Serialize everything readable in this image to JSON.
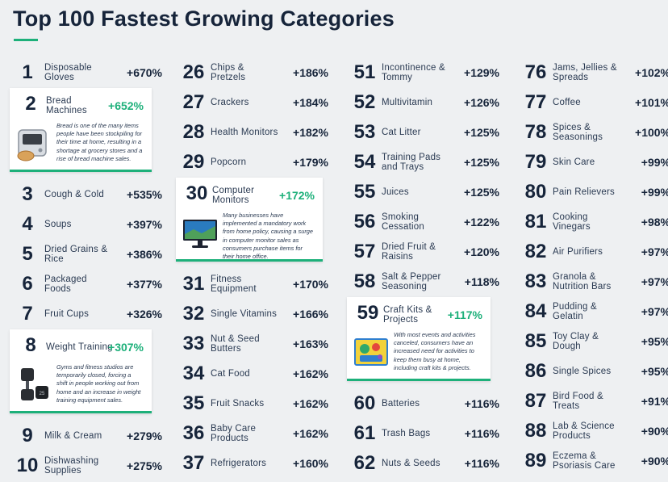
{
  "header": {
    "title": "Top 100 Fastest Growing Categories"
  },
  "chart_data": {
    "type": "table",
    "title": "Top 100 Fastest Growing Categories",
    "columns": [
      [
        {
          "rank": 1,
          "name": "Disposable Gloves",
          "value": "+670%"
        },
        {
          "rank": 2,
          "name": "Bread Machines",
          "value": "+652%",
          "highlight": true,
          "icon": "bread-machine-icon",
          "note": "Bread is one of the many items people have been stockpiling for their time at home, resulting in a shortage at grocery stores and a rise of bread machine sales."
        },
        {
          "rank": 3,
          "name": "Cough & Cold",
          "value": "+535%"
        },
        {
          "rank": 4,
          "name": "Soups",
          "value": "+397%"
        },
        {
          "rank": 5,
          "name": "Dried Grains & Rice",
          "value": "+386%"
        },
        {
          "rank": 6,
          "name": "Packaged Foods",
          "value": "+377%"
        },
        {
          "rank": 7,
          "name": "Fruit Cups",
          "value": "+326%"
        },
        {
          "rank": 8,
          "name": "Weight Training",
          "value": "+307%",
          "highlight": true,
          "icon": "dumbbell-icon",
          "note": "Gyms and fitness studios are temporarily closed, forcing a shift in people working out from home and an increase in weight training equipment sales."
        },
        {
          "rank": 9,
          "name": "Milk & Cream",
          "value": "+279%"
        },
        {
          "rank": 10,
          "name": "Dishwashing Supplies",
          "value": "+275%"
        }
      ],
      [
        {
          "rank": 26,
          "name": "Chips & Pretzels",
          "value": "+186%"
        },
        {
          "rank": 27,
          "name": "Crackers",
          "value": "+184%"
        },
        {
          "rank": 28,
          "name": "Health Monitors",
          "value": "+182%"
        },
        {
          "rank": 29,
          "name": "Popcorn",
          "value": "+179%"
        },
        {
          "rank": 30,
          "name": "Computer Monitors",
          "value": "+172%",
          "highlight": true,
          "icon": "monitor-icon",
          "note": "Many businesses have implemented a mandatory work from home policy, causing a surge in computer monitor sales as consumers purchase items for their home office."
        },
        {
          "rank": 31,
          "name": "Fitness Equipment",
          "value": "+170%"
        },
        {
          "rank": 32,
          "name": "Single Vitamins",
          "value": "+166%"
        },
        {
          "rank": 33,
          "name": "Nut & Seed Butters",
          "value": "+163%"
        },
        {
          "rank": 34,
          "name": "Cat Food",
          "value": "+162%"
        },
        {
          "rank": 35,
          "name": "Fruit Snacks",
          "value": "+162%"
        },
        {
          "rank": 36,
          "name": "Baby Care Products",
          "value": "+162%"
        },
        {
          "rank": 37,
          "name": "Refrigerators",
          "value": "+160%"
        }
      ],
      [
        {
          "rank": 51,
          "name": "Incontinence & Tommy",
          "value": "+129%"
        },
        {
          "rank": 52,
          "name": "Multivitamin",
          "value": "+126%"
        },
        {
          "rank": 53,
          "name": "Cat Litter",
          "value": "+125%"
        },
        {
          "rank": 54,
          "name": "Training Pads and Trays",
          "value": "+125%"
        },
        {
          "rank": 55,
          "name": "Juices",
          "value": "+125%"
        },
        {
          "rank": 56,
          "name": "Smoking Cessation",
          "value": "+122%"
        },
        {
          "rank": 57,
          "name": "Dried Fruit & Raisins",
          "value": "+120%"
        },
        {
          "rank": 58,
          "name": "Salt & Pepper Seasoning",
          "value": "+118%"
        },
        {
          "rank": 59,
          "name": "Craft Kits & Projects",
          "value": "+117%",
          "highlight": true,
          "icon": "craft-kit-icon",
          "note": "With most events and activities canceled, consumers have an increased need for activities to keep them busy at home, including craft kits & projects."
        },
        {
          "rank": 60,
          "name": "Batteries",
          "value": "+116%"
        },
        {
          "rank": 61,
          "name": "Trash Bags",
          "value": "+116%"
        },
        {
          "rank": 62,
          "name": "Nuts & Seeds",
          "value": "+116%"
        }
      ],
      [
        {
          "rank": 76,
          "name": "Jams, Jellies & Spreads",
          "value": "+102%"
        },
        {
          "rank": 77,
          "name": "Coffee",
          "value": "+101%"
        },
        {
          "rank": 78,
          "name": "Spices & Seasonings",
          "value": "+100%"
        },
        {
          "rank": 79,
          "name": "Skin Care",
          "value": "+99%"
        },
        {
          "rank": 80,
          "name": "Pain Relievers",
          "value": "+99%"
        },
        {
          "rank": 81,
          "name": "Cooking Vinegars",
          "value": "+98%"
        },
        {
          "rank": 82,
          "name": "Air Purifiers",
          "value": "+97%"
        },
        {
          "rank": 83,
          "name": "Granola & Nutrition Bars",
          "value": "+97%"
        },
        {
          "rank": 84,
          "name": "Pudding & Gelatin",
          "value": "+97%"
        },
        {
          "rank": 85,
          "name": "Toy Clay & Dough",
          "value": "+95%"
        },
        {
          "rank": 86,
          "name": "Single Spices",
          "value": "+95%"
        },
        {
          "rank": 87,
          "name": "Bird Food & Treats",
          "value": "+91%"
        },
        {
          "rank": 88,
          "name": "Lab & Science Products",
          "value": "+90%"
        },
        {
          "rank": 89,
          "name": "Eczema & Psoriasis Care",
          "value": "+90%"
        }
      ]
    ]
  }
}
